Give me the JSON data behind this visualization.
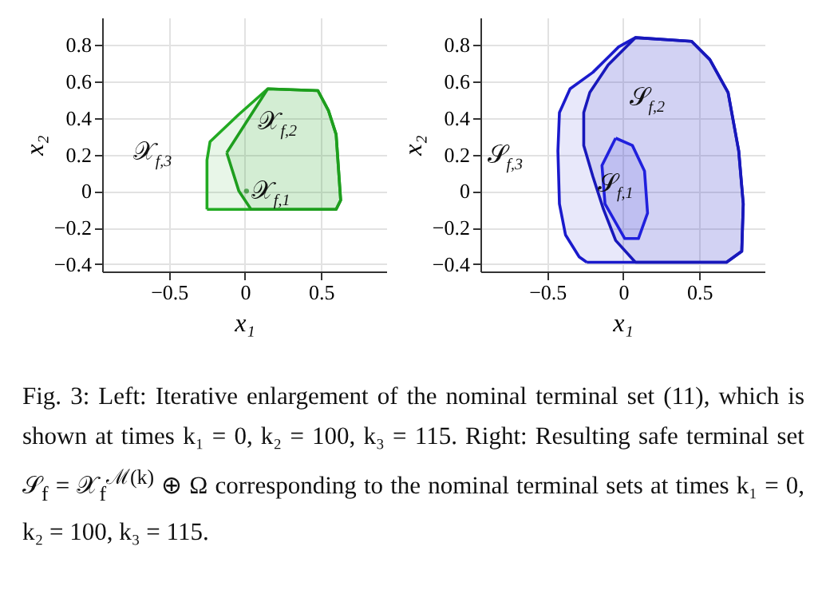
{
  "chart_data": [
    {
      "type": "area",
      "xlabel": "x₁",
      "ylabel": "x₂",
      "xlim": [
        -0.94,
        0.93
      ],
      "ylim": [
        -0.44,
        0.95
      ],
      "xticks": [
        -0.5,
        0,
        0.5
      ],
      "yticks": [
        -0.4,
        -0.2,
        0,
        0.2,
        0.4,
        0.6,
        0.8
      ],
      "grid": true,
      "series": [
        {
          "name": "𝒳$_{f,3}$",
          "color": "#22aa22",
          "x": [
            -0.25,
            -0.25,
            -0.23,
            -0.04,
            0.15,
            0.48,
            0.55,
            0.6,
            0.63,
            0.6,
            -0.25
          ],
          "values": [
            -0.1,
            0.17,
            0.27,
            0.42,
            0.56,
            0.55,
            0.44,
            0.31,
            -0.05,
            -0.1,
            -0.1
          ]
        },
        {
          "name": "𝒳$_{f,2}$",
          "color": "#1e9e1e",
          "x": [
            -0.12,
            0.15,
            0.48,
            0.55,
            0.6,
            0.63,
            0.6,
            0.04,
            -0.04,
            -0.12
          ],
          "values": [
            0.21,
            0.56,
            0.55,
            0.44,
            0.31,
            -0.05,
            -0.1,
            -0.1,
            0,
            0.21
          ]
        },
        {
          "name": "𝒳$_{f,1}$",
          "type": "scatter",
          "color": "#228822",
          "x": [
            0.01
          ],
          "values": [
            0
          ]
        }
      ]
    },
    {
      "type": "area",
      "xlabel": "x₁",
      "ylabel": "x₂",
      "xlim": [
        -0.94,
        0.93
      ],
      "ylim": [
        -0.44,
        0.95
      ],
      "xticks": [
        -0.5,
        0,
        0.5
      ],
      "yticks": [
        -0.4,
        -0.2,
        0,
        0.2,
        0.4,
        0.6,
        0.8
      ],
      "grid": true,
      "series": [
        {
          "name": "𝒮$_{f,3}$",
          "color": "#1a1acc",
          "x": [
            -0.24,
            0.68,
            0.78,
            0.79,
            0.76,
            0.69,
            0.57,
            0.45,
            0.08,
            -0.03,
            -0.2,
            -0.35,
            -0.42,
            -0.43,
            -0.42,
            -0.38,
            -0.29,
            -0.24
          ],
          "values": [
            -0.39,
            -0.39,
            -0.33,
            -0.07,
            0.22,
            0.54,
            0.72,
            0.82,
            0.84,
            0.79,
            0.65,
            0.56,
            0.43,
            0.22,
            -0.07,
            -0.24,
            -0.36,
            -0.39
          ]
        },
        {
          "name": "𝒮$_{f,2}$",
          "color": "#1818bb",
          "x": [
            0.08,
            0.68,
            0.78,
            0.79,
            0.76,
            0.69,
            0.57,
            0.45,
            0.08,
            -0.1,
            -0.22,
            -0.26,
            -0.26,
            -0.2,
            -0.13,
            -0.05,
            0.08
          ],
          "values": [
            -0.39,
            -0.39,
            -0.33,
            -0.07,
            0.22,
            0.54,
            0.72,
            0.82,
            0.84,
            0.69,
            0.54,
            0.43,
            0.25,
            0.08,
            -0.1,
            -0.27,
            -0.39
          ]
        },
        {
          "name": "𝒮$_{f,1}$",
          "color": "#2020dd",
          "x": [
            -0.05,
            -0.14,
            -0.12,
            0.01,
            0.1,
            0.16,
            0.14,
            0.06,
            -0.05
          ],
          "values": [
            0.29,
            0.14,
            -0.07,
            -0.26,
            -0.26,
            -0.12,
            0.11,
            0.25,
            0.29
          ]
        }
      ],
      "annotations": [
        "Fig. 3: Left: Iterative enlargement of the nominal terminal set (11), which is shown at times k₁ = 0, k₂ = 100, k₃ = 115. Right: Resulting safe terminal set 𝒮$_{f}$ = 𝒳$_{f}$$^{ℳ(k)}$ ⊕ Ω corresponding to the nominal terminal sets at times k₁ = 0, k₂ = 100, k₃ = 115."
      ]
    }
  ]
}
